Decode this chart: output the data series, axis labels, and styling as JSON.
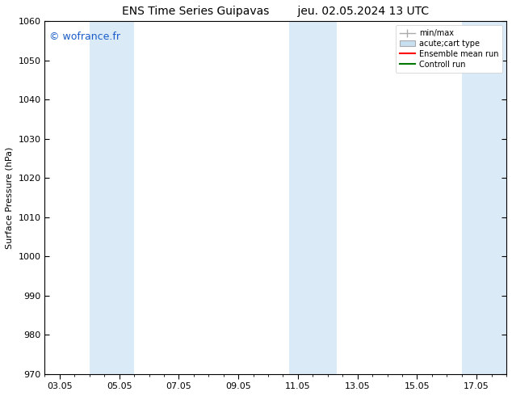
{
  "title": "ENS Time Series Guipavas        jeu. 02.05.2024 13 UTC",
  "ylabel": "Surface Pressure (hPa)",
  "ylim": [
    970,
    1060
  ],
  "yticks": [
    970,
    980,
    990,
    1000,
    1010,
    1020,
    1030,
    1040,
    1050,
    1060
  ],
  "xtick_labels": [
    "03.05",
    "05.05",
    "07.05",
    "09.05",
    "11.05",
    "13.05",
    "15.05",
    "17.05"
  ],
  "xtick_positions": [
    0,
    2,
    4,
    6,
    8,
    10,
    12,
    14
  ],
  "xlim": [
    -0.5,
    15.0
  ],
  "background_color": "#ffffff",
  "plot_bg_color": "#ffffff",
  "shaded_bands": [
    {
      "x_start": 1.0,
      "x_end": 2.5,
      "color": "#daeaf7"
    },
    {
      "x_start": 7.7,
      "x_end": 9.3,
      "color": "#daeaf7"
    },
    {
      "x_start": 13.5,
      "x_end": 15.0,
      "color": "#daeaf7"
    }
  ],
  "watermark_text": "© wofrance.fr",
  "watermark_color": "#1a5cc8",
  "legend_entries": [
    {
      "label": "min/max",
      "type": "errorbar",
      "color": "#aaaaaa"
    },
    {
      "label": "acute;cart type",
      "type": "box",
      "facecolor": "#c8dff0",
      "edgecolor": "#aaaaaa"
    },
    {
      "label": "Ensemble mean run",
      "type": "line",
      "color": "#ff0000"
    },
    {
      "label": "Controll run",
      "type": "line",
      "color": "#007700"
    }
  ],
  "fig_width": 6.34,
  "fig_height": 4.9,
  "dpi": 100,
  "title_fontsize": 10,
  "ylabel_fontsize": 8,
  "tick_fontsize": 8,
  "watermark_fontsize": 9
}
